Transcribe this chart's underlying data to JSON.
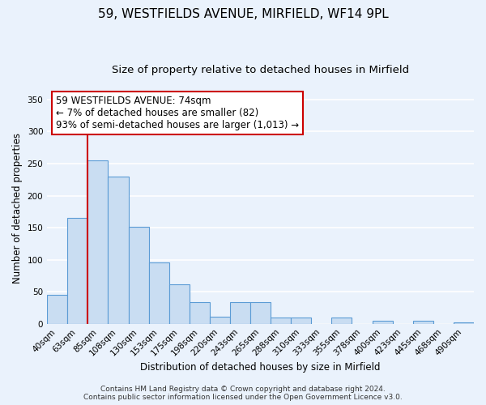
{
  "title": "59, WESTFIELDS AVENUE, MIRFIELD, WF14 9PL",
  "subtitle": "Size of property relative to detached houses in Mirfield",
  "xlabel": "Distribution of detached houses by size in Mirfield",
  "ylabel": "Number of detached properties",
  "footer_line1": "Contains HM Land Registry data © Crown copyright and database right 2024.",
  "footer_line2": "Contains public sector information licensed under the Open Government Licence v3.0.",
  "bin_labels": [
    "40sqm",
    "63sqm",
    "85sqm",
    "108sqm",
    "130sqm",
    "153sqm",
    "175sqm",
    "198sqm",
    "220sqm",
    "243sqm",
    "265sqm",
    "288sqm",
    "310sqm",
    "333sqm",
    "355sqm",
    "378sqm",
    "400sqm",
    "423sqm",
    "445sqm",
    "468sqm",
    "490sqm"
  ],
  "bar_values": [
    45,
    165,
    255,
    230,
    152,
    96,
    61,
    34,
    11,
    34,
    34,
    10,
    10,
    0,
    10,
    0,
    5,
    0,
    5,
    0,
    2
  ],
  "bar_color": "#c9ddf2",
  "bar_edge_color": "#5b9bd5",
  "annotation_box_text": "59 WESTFIELDS AVENUE: 74sqm\n← 7% of detached houses are smaller (82)\n93% of semi-detached houses are larger (1,013) →",
  "annotation_box_color": "#ffffff",
  "annotation_box_edge_color": "#cc0000",
  "vline_x_idx": 2,
  "vline_color": "#cc0000",
  "ylim": [
    0,
    360
  ],
  "yticks": [
    0,
    50,
    100,
    150,
    200,
    250,
    300,
    350
  ],
  "bg_color": "#eaf2fc",
  "grid_color": "#ffffff",
  "title_fontsize": 11,
  "subtitle_fontsize": 9.5,
  "axis_label_fontsize": 8.5,
  "tick_fontsize": 7.5,
  "annotation_fontsize": 8.5,
  "footer_fontsize": 6.5
}
